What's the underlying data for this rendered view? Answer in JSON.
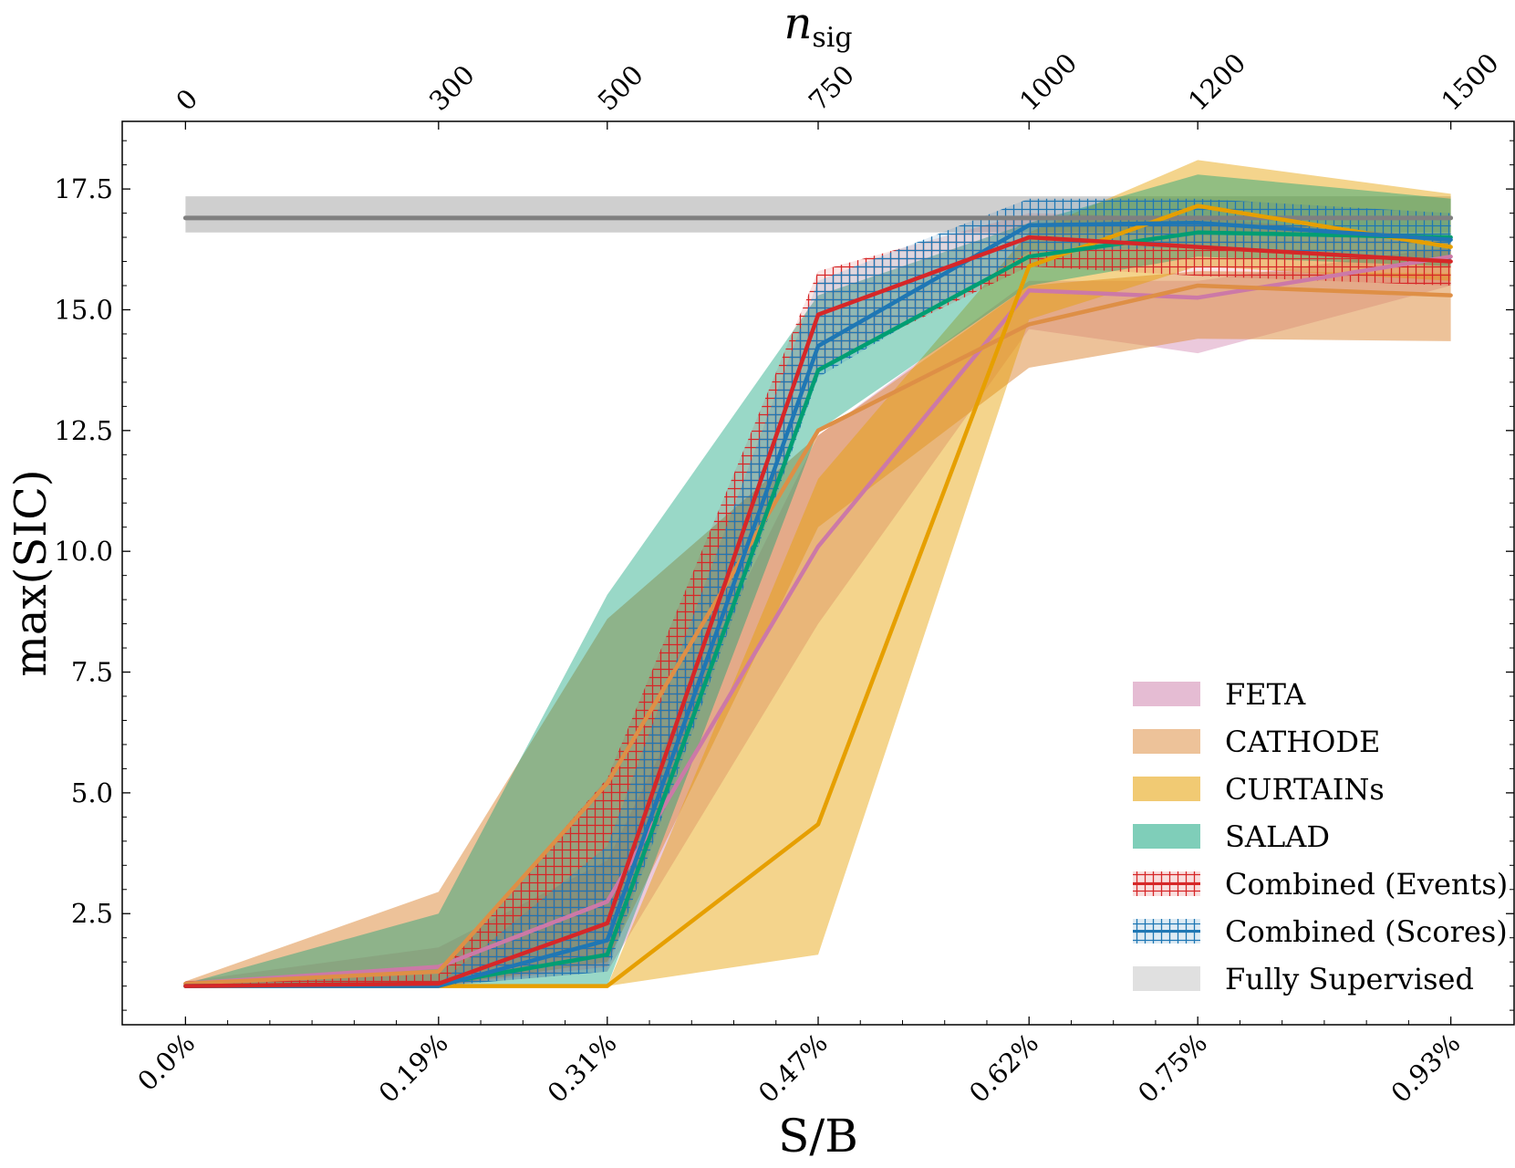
{
  "chart_data": {
    "type": "line",
    "title": "",
    "xlabel": "S/B",
    "ylabel": "max(SIC)",
    "top_xlabel": "n",
    "top_xlabel_sub": "sig",
    "x_positions": [
      0,
      300,
      500,
      750,
      1000,
      1200,
      1500
    ],
    "xlim": [
      -75,
      1575
    ],
    "ylim": [
      0.2,
      18.9
    ],
    "categories": [
      "0.0%",
      "0.19%",
      "0.31%",
      "0.47%",
      "0.62%",
      "0.75%",
      "0.93%"
    ],
    "top_ticks": [
      "0",
      "300",
      "500",
      "750",
      "1000",
      "1200",
      "1500"
    ],
    "y_ticks": [
      2.5,
      5.0,
      7.5,
      10.0,
      12.5,
      15.0,
      17.5
    ],
    "y_tick_labels": [
      "2.5",
      "5.0",
      "7.5",
      "10.0",
      "12.5",
      "15.0",
      "17.5"
    ],
    "grid": false,
    "legend_position": "lower-right",
    "series": [
      {
        "name": "FETA",
        "color": "#cc79a7",
        "band_opacity": 0.4,
        "hatch": false,
        "values": [
          1.05,
          1.4,
          2.75,
          10.1,
          15.4,
          15.25,
          16.1
        ],
        "lower": [
          1.0,
          1.0,
          1.3,
          8.5,
          14.6,
          14.1,
          15.5
        ],
        "upper": [
          1.1,
          1.8,
          3.6,
          12.4,
          15.6,
          15.6,
          16.3
        ]
      },
      {
        "name": "CATHODE",
        "color": "#de8f46",
        "band_opacity": 0.55,
        "hatch": false,
        "values": [
          1.05,
          1.3,
          5.2,
          12.5,
          14.7,
          15.5,
          15.3
        ],
        "lower": [
          1.0,
          1.0,
          1.5,
          10.5,
          13.8,
          14.4,
          14.35
        ],
        "upper": [
          1.1,
          2.95,
          8.6,
          12.4,
          15.5,
          15.8,
          15.75
        ]
      },
      {
        "name": "CURTAINs",
        "color": "#e69f00",
        "band_opacity": 0.45,
        "hatch": false,
        "values": [
          1.0,
          1.0,
          1.0,
          4.35,
          15.9,
          17.15,
          16.3
        ],
        "lower": [
          1.0,
          1.0,
          1.0,
          1.65,
          14.8,
          15.9,
          15.6
        ],
        "upper": [
          1.0,
          1.0,
          1.0,
          11.5,
          16.6,
          18.1,
          17.4
        ]
      },
      {
        "name": "SALAD",
        "color": "#009e73",
        "band_opacity": 0.4,
        "hatch": false,
        "values": [
          1.0,
          1.05,
          1.65,
          13.75,
          16.1,
          16.6,
          16.5
        ],
        "lower": [
          1.0,
          1.0,
          1.0,
          12.5,
          15.5,
          16.1,
          15.9
        ],
        "upper": [
          1.05,
          2.5,
          9.1,
          15.3,
          16.8,
          17.8,
          17.3
        ]
      },
      {
        "name": "Combined (Events)",
        "color": "#d62728",
        "band_opacity": 0.12,
        "hatch": true,
        "values": [
          1.0,
          1.05,
          2.3,
          14.9,
          16.5,
          16.3,
          16.0
        ],
        "lower": [
          1.0,
          1.0,
          1.4,
          13.8,
          15.9,
          15.7,
          15.5
        ],
        "upper": [
          1.1,
          1.25,
          5.3,
          15.8,
          17.0,
          16.9,
          16.5
        ]
      },
      {
        "name": "Combined (Scores)",
        "color": "#1f77b4",
        "band_opacity": 0.12,
        "hatch": true,
        "values": [
          1.0,
          1.0,
          1.95,
          14.25,
          16.75,
          16.8,
          16.45
        ],
        "lower": [
          1.0,
          1.0,
          1.3,
          13.6,
          16.2,
          16.3,
          16.0
        ],
        "upper": [
          1.0,
          1.05,
          3.9,
          15.6,
          17.3,
          17.3,
          17.0
        ]
      },
      {
        "name": "Fully Supervised",
        "color": "#808080",
        "band_color": "#c7c7c7",
        "band_opacity": 0.85,
        "hatch": false,
        "values": [
          16.9,
          16.9,
          16.9,
          16.9,
          16.9,
          16.9,
          16.9
        ],
        "lower": [
          16.6,
          16.6,
          16.6,
          16.6,
          16.6,
          16.6,
          16.6
        ],
        "upper": [
          17.35,
          17.35,
          17.35,
          17.35,
          17.35,
          17.35,
          17.35
        ]
      }
    ]
  }
}
